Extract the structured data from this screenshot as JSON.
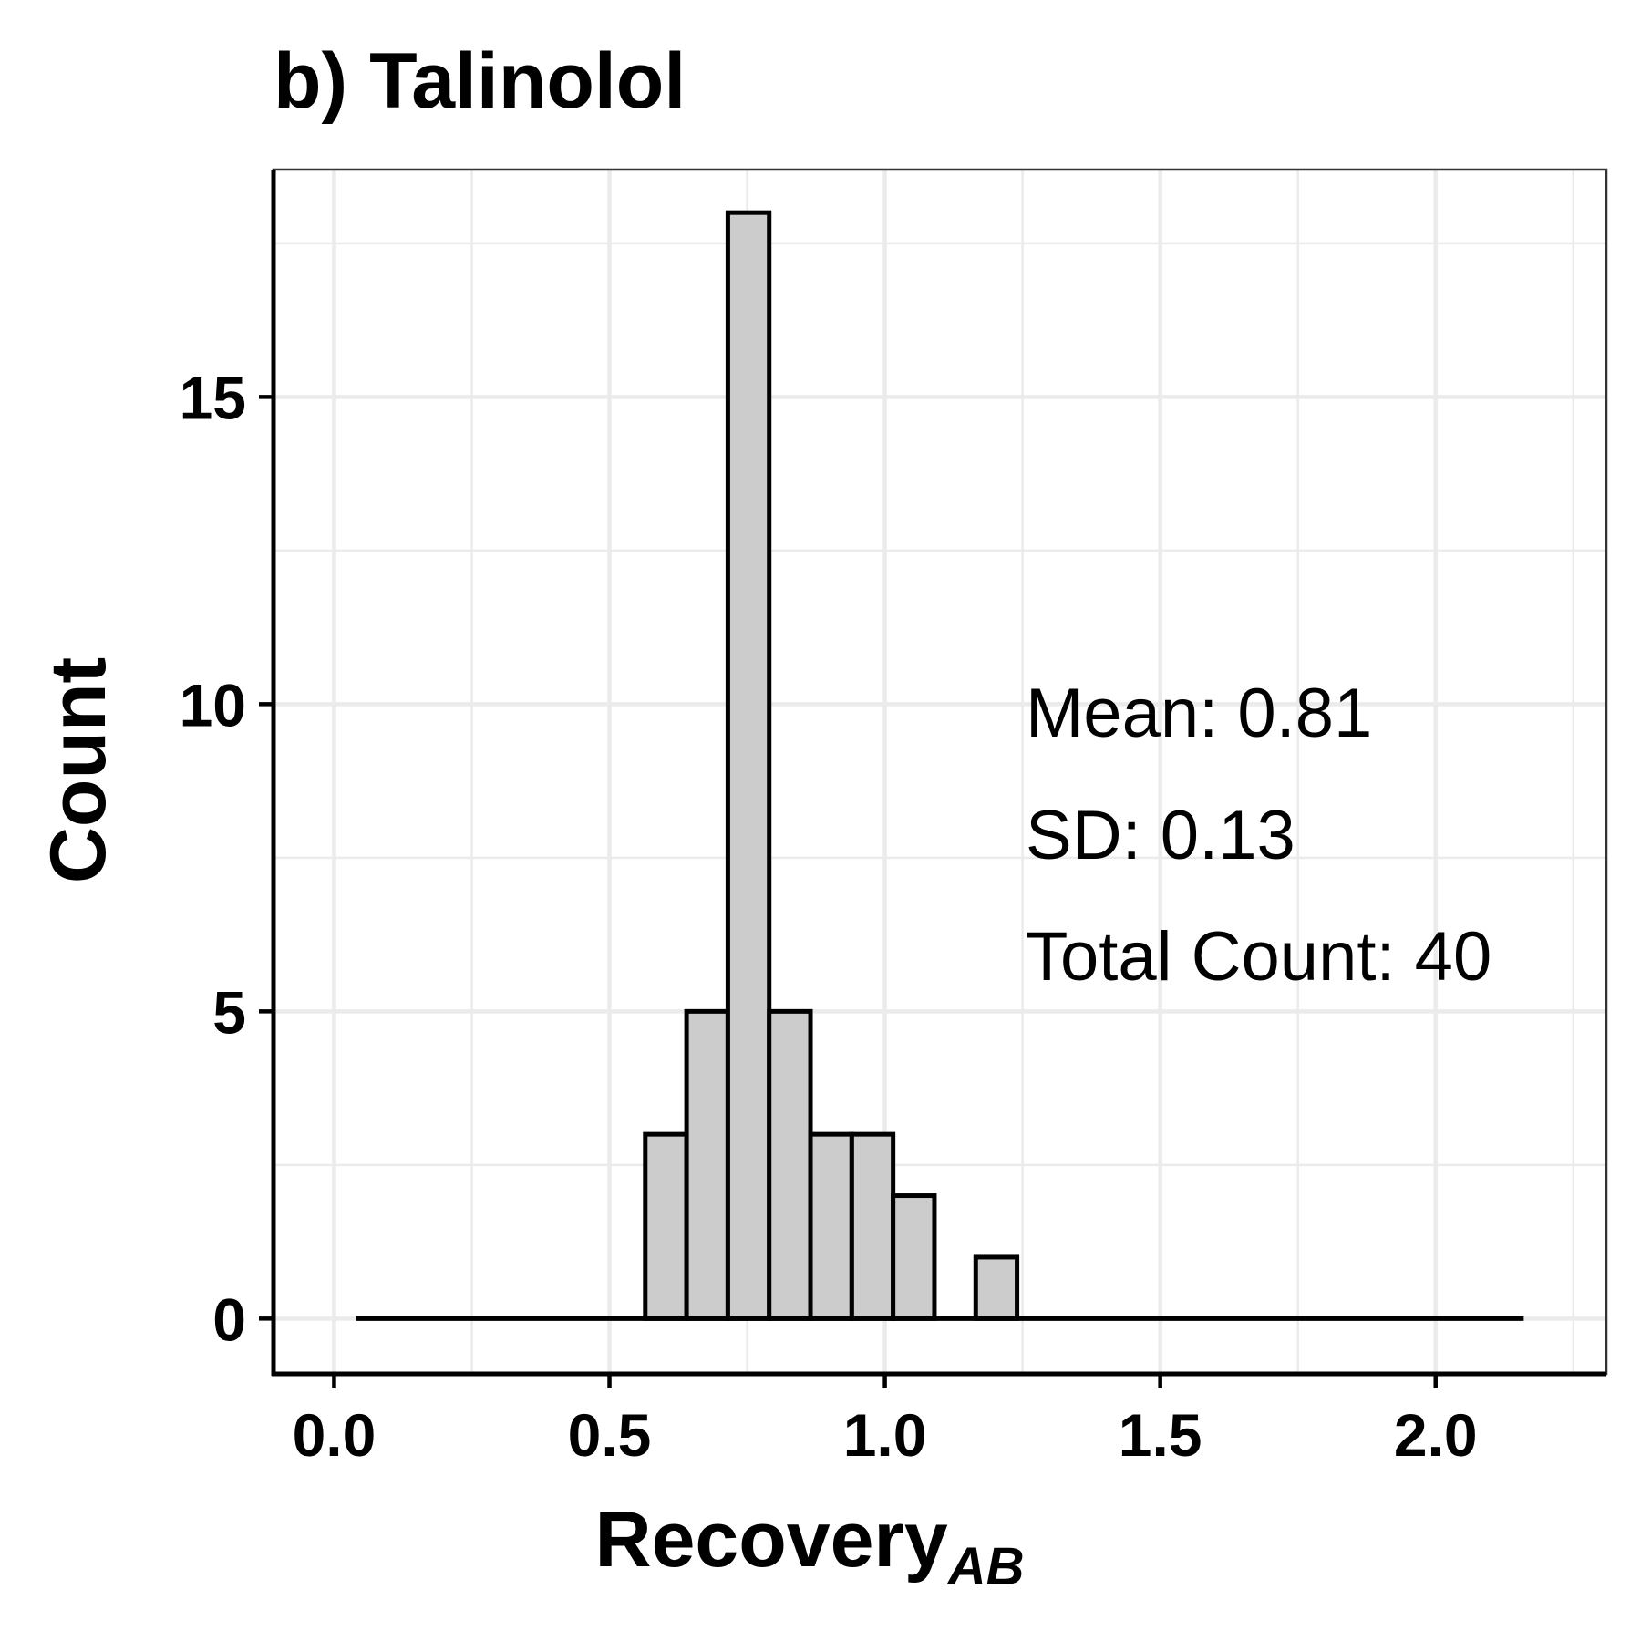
{
  "chart_data": {
    "type": "bar",
    "title": "b) Talinolol",
    "xlabel": "Recovery",
    "xlabel_subscript": "AB",
    "ylabel": "Count",
    "xlim": [
      -0.11,
      2.31
    ],
    "ylim": [
      -0.9,
      18.7
    ],
    "x_ticks": [
      0.0,
      0.5,
      1.0,
      1.5,
      2.0
    ],
    "x_tick_labels": [
      "0.0",
      "0.5",
      "1.0",
      "1.5",
      "2.0"
    ],
    "y_ticks": [
      0,
      5,
      10,
      15
    ],
    "y_tick_labels": [
      "0",
      "5",
      "10",
      "15"
    ],
    "x_minor_grid": [
      0.25,
      0.75,
      1.25,
      1.75,
      2.25
    ],
    "y_minor_grid": [
      2.5,
      7.5,
      12.5,
      17.5
    ],
    "grid": true,
    "bin_width": 0.075,
    "baseline_range": [
      0.04,
      2.16
    ],
    "bins": [
      {
        "x0": 0.565,
        "x1": 0.64,
        "count": 3
      },
      {
        "x0": 0.64,
        "x1": 0.715,
        "count": 5
      },
      {
        "x0": 0.715,
        "x1": 0.79,
        "count": 18
      },
      {
        "x0": 0.79,
        "x1": 0.865,
        "count": 5
      },
      {
        "x0": 0.865,
        "x1": 0.94,
        "count": 3
      },
      {
        "x0": 0.94,
        "x1": 1.015,
        "count": 3
      },
      {
        "x0": 1.015,
        "x1": 1.09,
        "count": 2
      },
      {
        "x0": 1.09,
        "x1": 1.165,
        "count": 0
      },
      {
        "x0": 1.165,
        "x1": 1.24,
        "count": 1
      }
    ],
    "bar_fill": "#cccccc",
    "bar_stroke": "#000000",
    "grid_color": "#ebebeb",
    "annotations": [
      "Mean: 0.81",
      "SD: 0.13",
      "Total Count: 40"
    ]
  }
}
